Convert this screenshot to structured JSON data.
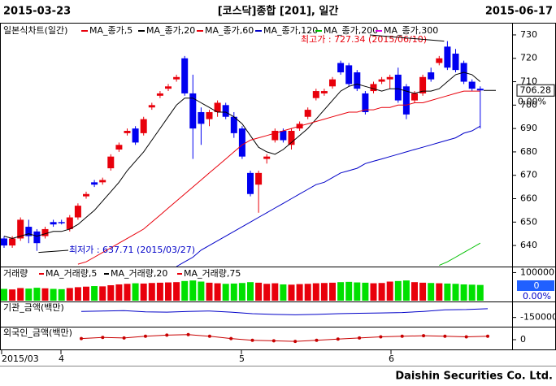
{
  "chart_data": {
    "type": "candlestick",
    "date_start": "2015-03-23",
    "title": "[코스닥]종합 [201], 일간",
    "date_end": "2015-06-17",
    "legend_label": "일본식차트(일간)",
    "up_color": "#e8000b",
    "down_color": "#0000f0",
    "ylim": [
      631,
      734.5
    ],
    "yticks": [
      640,
      650,
      660,
      670,
      680,
      690,
      700,
      710,
      720,
      730
    ],
    "open": [
      643,
      640,
      643,
      648,
      646,
      644,
      650,
      650,
      647,
      652,
      661,
      667,
      667,
      673,
      681,
      688,
      690,
      688,
      699,
      704,
      707,
      711,
      720,
      705,
      697,
      694,
      697,
      700,
      695,
      690,
      671,
      666,
      677,
      685,
      689,
      683,
      690,
      695,
      703,
      705,
      708,
      718,
      717,
      714,
      705,
      706,
      710,
      711,
      713,
      708,
      702,
      705,
      714,
      718,
      725,
      722,
      718,
      710,
      707
    ],
    "high": [
      644,
      644,
      652,
      651,
      647,
      648,
      651,
      651,
      653,
      658,
      663,
      668,
      669,
      679,
      684,
      690,
      691,
      695,
      701,
      706,
      709,
      713,
      721,
      713,
      699,
      698,
      702,
      701,
      697,
      691,
      672,
      672,
      679,
      690,
      690,
      690,
      693,
      699,
      707,
      707,
      712,
      719,
      718,
      715,
      706,
      710,
      712,
      713,
      716,
      709,
      706,
      713,
      716,
      721,
      727.34,
      724,
      719,
      711,
      708
    ],
    "low": [
      639,
      639,
      642,
      641,
      637.71,
      643,
      648,
      649,
      646,
      651,
      660,
      665,
      666,
      672,
      680,
      687,
      683,
      687,
      698,
      703,
      706,
      710,
      704,
      677,
      683,
      691,
      695,
      694,
      686,
      677,
      661,
      654,
      675,
      684,
      684,
      681,
      689,
      694,
      702,
      704,
      707,
      713,
      708,
      706,
      696,
      705,
      709,
      707,
      701,
      694,
      701,
      704,
      710,
      717,
      715,
      714,
      709,
      706,
      690
    ],
    "close": [
      640,
      643,
      651,
      644,
      641,
      647,
      649,
      649.5,
      652,
      657,
      662,
      666,
      668,
      678,
      683,
      689,
      684,
      694,
      700,
      705,
      708,
      712,
      705,
      690,
      692,
      697,
      701,
      695,
      688,
      678,
      662,
      671,
      678,
      689,
      685,
      689,
      692,
      698,
      706,
      706,
      711,
      714,
      709,
      707,
      697,
      709,
      711,
      712,
      702,
      696,
      705,
      712,
      711,
      720,
      716,
      715,
      710,
      707,
      706.28
    ],
    "series": [
      {
        "name": "MA_종가,5",
        "color": "#e8000b"
      },
      {
        "name": "MA_종가,20",
        "color": "#000000",
        "values": [
          644,
          643,
          644,
          645,
          644,
          645,
          646,
          646,
          647,
          649,
          652,
          655,
          659,
          663,
          667,
          672,
          676,
          680,
          685,
          690,
          695,
          700,
          703,
          703,
          701,
          699,
          697,
          697,
          695,
          692,
          687,
          682,
          680,
          679,
          681,
          684,
          687,
          690,
          694,
          698,
          702,
          706,
          708,
          709,
          708,
          707,
          706,
          707,
          707,
          706,
          705,
          706,
          706,
          707,
          710,
          713,
          714,
          713,
          710
        ]
      },
      {
        "name": "MA_종가,60",
        "color": "#e8000b",
        "values": [
          null,
          null,
          null,
          null,
          null,
          null,
          null,
          null,
          null,
          632,
          633,
          635,
          637,
          639,
          641,
          643,
          645,
          647,
          650,
          653,
          656,
          659,
          662,
          665,
          668,
          671,
          674,
          677,
          680,
          683,
          685,
          686,
          687,
          688,
          689,
          690,
          691,
          692,
          693,
          694,
          695,
          696,
          697,
          697,
          698,
          698,
          699,
          699,
          700,
          700,
          701,
          701,
          702,
          703,
          704,
          705,
          706,
          706,
          706
        ]
      },
      {
        "name": "MA_종가,120",
        "color": "#0000c8",
        "values": [
          null,
          null,
          null,
          null,
          null,
          null,
          null,
          null,
          null,
          null,
          null,
          null,
          null,
          null,
          null,
          null,
          null,
          null,
          null,
          null,
          null,
          631,
          633,
          635,
          638,
          640,
          642,
          644,
          646,
          648,
          650,
          652,
          654,
          656,
          658,
          660,
          662,
          664,
          666,
          667,
          669,
          671,
          672,
          673,
          675,
          676,
          677,
          678,
          679,
          680,
          681,
          682,
          683,
          684,
          685,
          686,
          688,
          689,
          691
        ]
      },
      {
        "name": "MA_종가,200",
        "color": "#00c000",
        "values": [
          null,
          null,
          null,
          null,
          null,
          null,
          null,
          null,
          null,
          null,
          null,
          null,
          null,
          null,
          null,
          null,
          null,
          null,
          null,
          null,
          null,
          null,
          null,
          null,
          null,
          null,
          null,
          null,
          null,
          null,
          null,
          null,
          null,
          null,
          null,
          null,
          null,
          null,
          null,
          null,
          null,
          null,
          null,
          null,
          null,
          null,
          null,
          null,
          null,
          null,
          null,
          null,
          null,
          631.5,
          633,
          635,
          637,
          639,
          641
        ]
      },
      {
        "name": "MA_종가,300",
        "color": "#e000e0"
      }
    ],
    "annotations": [
      "최고가 : 727.34 (2015/06/10)",
      "최저가 : 637.71 (2015/03/27)"
    ],
    "last_price": 706.28,
    "last_change": "0.00%",
    "months": [
      "2015/03",
      "4",
      "5",
      "6"
    ],
    "volume": {
      "label": "거래량",
      "legend": [
        {
          "name": "MA_거래량,5",
          "color": "#e8000b"
        },
        {
          "name": "MA_거래량,20",
          "color": "#000000"
        },
        {
          "name": "MA_거래량,75",
          "color": "#e8000b"
        }
      ],
      "up_color": "#e8000b",
      "down_color": "#00e000",
      "values": [
        42000,
        40000,
        45000,
        43000,
        46000,
        44000,
        42000,
        41000,
        45000,
        48000,
        50000,
        52000,
        51000,
        55000,
        58000,
        60000,
        62000,
        61000,
        63000,
        64000,
        65000,
        66000,
        70000,
        72000,
        68000,
        64000,
        62000,
        60000,
        61000,
        63000,
        66000,
        64000,
        60000,
        62000,
        58000,
        57000,
        59000,
        60000,
        62000,
        63000,
        64000,
        66000,
        67000,
        65000,
        64000,
        62000,
        63000,
        68000,
        70000,
        72000,
        66000,
        64000,
        63000,
        62000,
        61000,
        60000,
        58000,
        57000,
        56000
      ],
      "ylim": [
        0,
        110000
      ],
      "yticks": [
        100000
      ],
      "last_value": 0,
      "last_change": "0.00%"
    },
    "institution": {
      "label": "기관_금액(백만)",
      "color": "#0000c8",
      "values": [
        -700000,
        -650000,
        -600000,
        -750000,
        -800000,
        -700000,
        -650000,
        -800000,
        -1000000,
        -1100000,
        -1150000,
        -1100000,
        -1000000,
        -950000,
        -900000,
        -850000,
        -700000,
        -500000,
        -450000,
        -350000
      ],
      "ylim": [
        -2500000,
        500000
      ],
      "yticks": [
        -1500000
      ]
    },
    "foreign": {
      "label": "외국인_금액(백만)",
      "color": "#c80000",
      "values": [
        100000,
        200000,
        150000,
        300000,
        400000,
        450000,
        300000,
        100000,
        -50000,
        -100000,
        -150000,
        -50000,
        50000,
        150000,
        250000,
        300000,
        350000,
        300000,
        250000,
        300000
      ],
      "ylim": [
        -1000000,
        1000000
      ],
      "yticks": [
        0
      ]
    },
    "footer": "Daishin Securities Co. Ltd."
  }
}
